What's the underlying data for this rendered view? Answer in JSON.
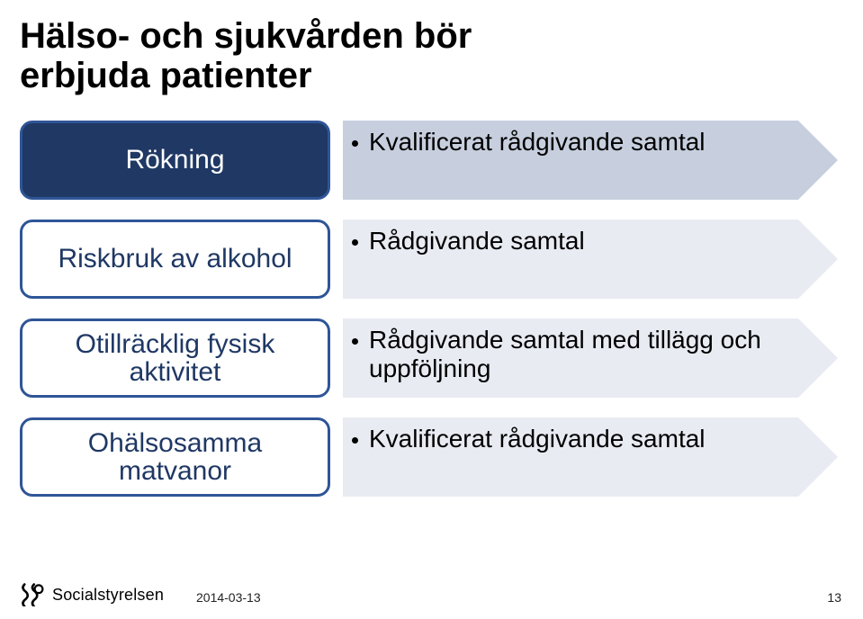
{
  "title_line1": "Hälso- och sjukvården bör",
  "title_line2": "erbjuda patienter",
  "title_color": "#000000",
  "rows": [
    {
      "pill_label": "Rökning",
      "pill_bg": "#1f3864",
      "pill_border": "#2f5597",
      "pill_text_color": "#ffffff",
      "arrow_color": "#c7cfde",
      "bullet_text": "Kvalificerat rådgivande samtal"
    },
    {
      "pill_label": "Riskbruk av alkohol",
      "pill_bg": "#ffffff",
      "pill_border": "#2f5597",
      "pill_text_color": "#1f3864",
      "arrow_color": "#e8ebf2",
      "bullet_text": "Rådgivande samtal"
    },
    {
      "pill_label": "Otillräcklig fysisk aktivitet",
      "pill_bg": "#ffffff",
      "pill_border": "#2f5597",
      "pill_text_color": "#1f3864",
      "arrow_color": "#e8ebf2",
      "bullet_text": "Rådgivande samtal med tillägg och uppföljning"
    },
    {
      "pill_label": "Ohälsosamma matvanor",
      "pill_bg": "#ffffff",
      "pill_border": "#2f5597",
      "pill_text_color": "#1f3864",
      "arrow_color": "#e8ebf2",
      "bullet_text": "Kvalificerat rådgivande samtal"
    }
  ],
  "footer": {
    "logo_text": "Socialstyrelsen",
    "date": "2014-03-13",
    "page": "13"
  }
}
